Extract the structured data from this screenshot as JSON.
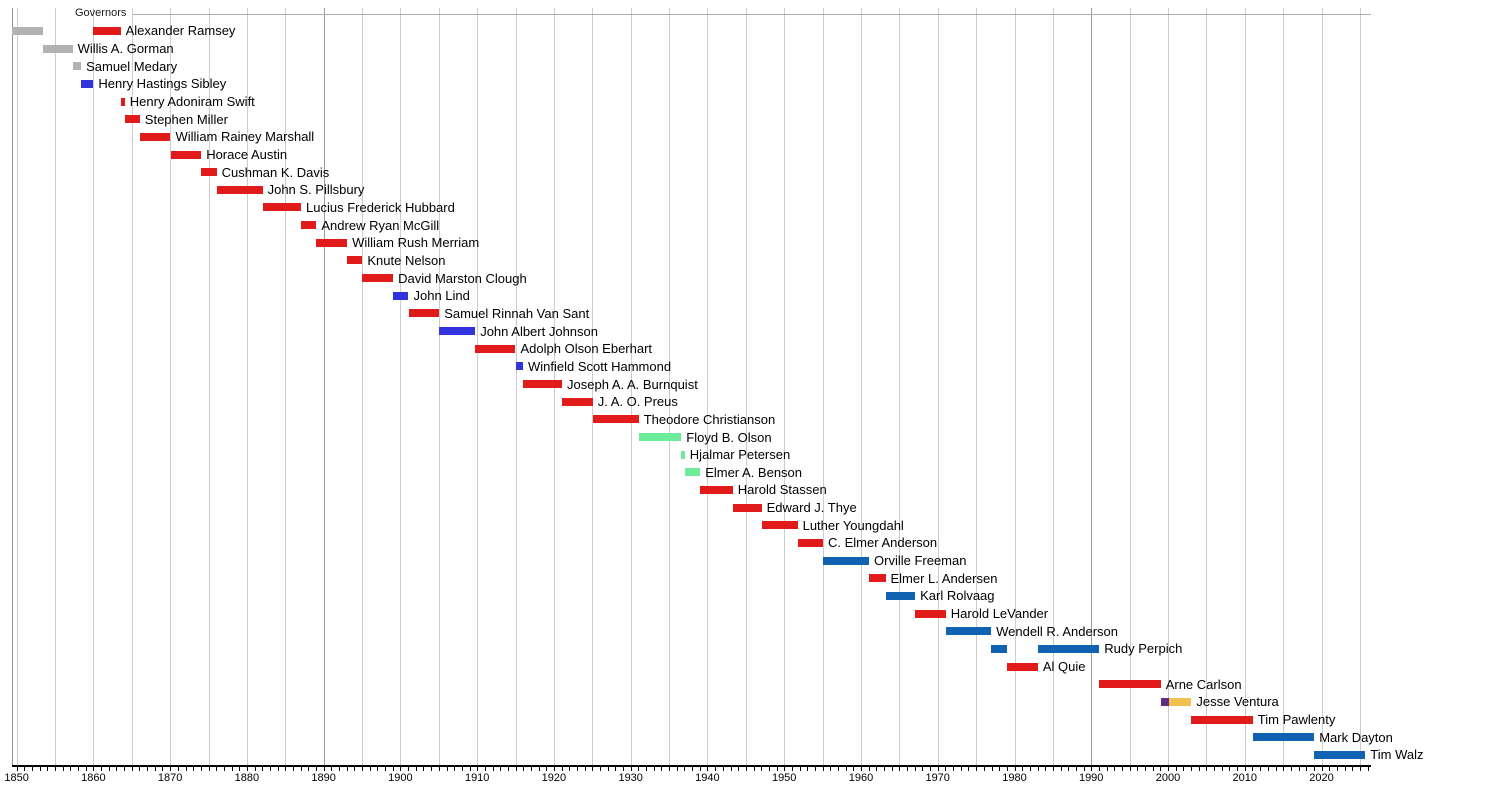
{
  "header": {
    "section_label": "Governors"
  },
  "palette": {
    "gray": "#b2b2b2",
    "red": "#e11a1a",
    "brightblue": "#3333dd",
    "lightgreen": "#6ceb9b",
    "darkblue": "#1163b2",
    "purple": "#5c2d87",
    "gold": "#f1c14f",
    "gridline": "#cdcdcd",
    "gridline_emphasized": "#9c9c9c",
    "axis": "#000000"
  },
  "chart_data": {
    "type": "bar",
    "subtype": "gantt-timeline",
    "title": "Governors",
    "grid": true,
    "legend_position": "none",
    "x_axis": {
      "min": 1849.4,
      "max": 2026.5,
      "tick_labels": [
        "1850",
        "1860",
        "1870",
        "1880",
        "1890",
        "1900",
        "1910",
        "1920",
        "1930",
        "1940",
        "1950",
        "1960",
        "1970",
        "1980",
        "1990",
        "2000",
        "2010",
        "2020"
      ],
      "tick_interval_years": 10,
      "grid_interval_years": 5,
      "minor_tick_interval_years": 1,
      "emphasized_gridline_years": [
        1890,
        1990
      ]
    },
    "rows": [
      {
        "label": "Alexander Ramsey",
        "segments": [
          {
            "color": "gray",
            "start": 1849.45,
            "end": 1853.4
          },
          {
            "color": "red",
            "start": 1860.0,
            "end": 1863.55
          }
        ]
      },
      {
        "label": "Willis A. Gorman",
        "segments": [
          {
            "color": "gray",
            "start": 1853.4,
            "end": 1857.3
          }
        ]
      },
      {
        "label": "Samuel Medary",
        "segments": [
          {
            "color": "gray",
            "start": 1857.3,
            "end": 1858.4
          }
        ]
      },
      {
        "label": "Henry Hastings Sibley",
        "segments": [
          {
            "color": "brightblue",
            "start": 1858.4,
            "end": 1860.0
          }
        ]
      },
      {
        "label": "Henry Adoniram Swift",
        "segments": [
          {
            "color": "red",
            "start": 1863.55,
            "end": 1864.1
          }
        ]
      },
      {
        "label": "Stephen Miller",
        "segments": [
          {
            "color": "red",
            "start": 1864.1,
            "end": 1866.05
          }
        ]
      },
      {
        "label": "William Rainey Marshall",
        "segments": [
          {
            "color": "red",
            "start": 1866.05,
            "end": 1870.05
          }
        ]
      },
      {
        "label": "Horace Austin",
        "segments": [
          {
            "color": "red",
            "start": 1870.05,
            "end": 1874.05
          }
        ]
      },
      {
        "label": "Cushman K. Davis",
        "segments": [
          {
            "color": "red",
            "start": 1874.05,
            "end": 1876.05
          }
        ]
      },
      {
        "label": "John S. Pillsbury",
        "segments": [
          {
            "color": "red",
            "start": 1876.05,
            "end": 1882.05
          }
        ]
      },
      {
        "label": "Lucius Frederick Hubbard",
        "segments": [
          {
            "color": "red",
            "start": 1882.05,
            "end": 1887.05
          }
        ]
      },
      {
        "label": "Andrew Ryan McGill",
        "segments": [
          {
            "color": "red",
            "start": 1887.05,
            "end": 1889.05
          }
        ]
      },
      {
        "label": "William Rush Merriam",
        "segments": [
          {
            "color": "red",
            "start": 1889.05,
            "end": 1893.05
          }
        ]
      },
      {
        "label": "Knute Nelson",
        "segments": [
          {
            "color": "red",
            "start": 1893.05,
            "end": 1895.05
          }
        ]
      },
      {
        "label": "David Marston Clough",
        "segments": [
          {
            "color": "red",
            "start": 1895.05,
            "end": 1899.05
          }
        ]
      },
      {
        "label": "John Lind",
        "segments": [
          {
            "color": "brightblue",
            "start": 1899.05,
            "end": 1901.05
          }
        ]
      },
      {
        "label": "Samuel Rinnah Van Sant",
        "segments": [
          {
            "color": "red",
            "start": 1901.05,
            "end": 1905.05
          }
        ]
      },
      {
        "label": "John Albert Johnson",
        "segments": [
          {
            "color": "brightblue",
            "start": 1905.05,
            "end": 1909.75
          }
        ]
      },
      {
        "label": "Adolph Olson Eberhart",
        "segments": [
          {
            "color": "red",
            "start": 1909.75,
            "end": 1915.0
          }
        ]
      },
      {
        "label": "Winfield Scott Hammond",
        "segments": [
          {
            "color": "brightblue",
            "start": 1915.0,
            "end": 1915.97
          }
        ]
      },
      {
        "label": "Joseph A. A. Burnquist",
        "segments": [
          {
            "color": "red",
            "start": 1915.97,
            "end": 1921.05
          }
        ]
      },
      {
        "label": "J. A. O. Preus",
        "segments": [
          {
            "color": "red",
            "start": 1921.05,
            "end": 1925.05
          }
        ]
      },
      {
        "label": "Theodore Christianson",
        "segments": [
          {
            "color": "red",
            "start": 1925.05,
            "end": 1931.05
          }
        ]
      },
      {
        "label": "Floyd B. Olson",
        "segments": [
          {
            "color": "lightgreen",
            "start": 1931.05,
            "end": 1936.6
          }
        ]
      },
      {
        "label": "Hjalmar Petersen",
        "segments": [
          {
            "color": "lightgreen",
            "start": 1936.6,
            "end": 1937.05
          }
        ]
      },
      {
        "label": "Elmer A. Benson",
        "segments": [
          {
            "color": "lightgreen",
            "start": 1937.05,
            "end": 1939.05
          }
        ]
      },
      {
        "label": "Harold Stassen",
        "segments": [
          {
            "color": "red",
            "start": 1939.05,
            "end": 1943.3
          }
        ]
      },
      {
        "label": "Edward J. Thye",
        "segments": [
          {
            "color": "red",
            "start": 1943.3,
            "end": 1947.05
          }
        ]
      },
      {
        "label": "Luther Youngdahl",
        "segments": [
          {
            "color": "red",
            "start": 1947.05,
            "end": 1951.75
          }
        ]
      },
      {
        "label": "C. Elmer Anderson",
        "segments": [
          {
            "color": "red",
            "start": 1951.75,
            "end": 1955.05
          }
        ]
      },
      {
        "label": "Orville Freeman",
        "segments": [
          {
            "color": "darkblue",
            "start": 1955.05,
            "end": 1961.05
          }
        ]
      },
      {
        "label": "Elmer L. Andersen",
        "segments": [
          {
            "color": "red",
            "start": 1961.05,
            "end": 1963.2
          }
        ]
      },
      {
        "label": "Karl Rolvaag",
        "segments": [
          {
            "color": "darkblue",
            "start": 1963.2,
            "end": 1967.05
          }
        ]
      },
      {
        "label": "Harold LeVander",
        "segments": [
          {
            "color": "red",
            "start": 1967.05,
            "end": 1971.05
          }
        ]
      },
      {
        "label": "Wendell R. Anderson",
        "segments": [
          {
            "color": "darkblue",
            "start": 1971.05,
            "end": 1976.95
          }
        ]
      },
      {
        "label": "Rudy Perpich",
        "segments": [
          {
            "color": "darkblue",
            "start": 1976.95,
            "end": 1979.05
          },
          {
            "color": "darkblue",
            "start": 1983.05,
            "end": 1991.05
          }
        ]
      },
      {
        "label": "Al Quie",
        "segments": [
          {
            "color": "red",
            "start": 1979.05,
            "end": 1983.05
          }
        ]
      },
      {
        "label": "Arne Carlson",
        "segments": [
          {
            "color": "red",
            "start": 1991.05,
            "end": 1999.05
          }
        ]
      },
      {
        "label": "Jesse Ventura",
        "segments": [
          {
            "color": "purple",
            "start": 1999.05,
            "end": 2000.1
          },
          {
            "color": "gold",
            "start": 2000.1,
            "end": 2003.05
          }
        ]
      },
      {
        "label": "Tim Pawlenty",
        "segments": [
          {
            "color": "red",
            "start": 2003.05,
            "end": 2011.05
          }
        ]
      },
      {
        "label": "Mark Dayton",
        "segments": [
          {
            "color": "darkblue",
            "start": 2011.05,
            "end": 2019.05
          }
        ]
      },
      {
        "label": "Tim Walz",
        "segments": [
          {
            "color": "darkblue",
            "start": 2019.05,
            "end": 2025.7
          }
        ]
      }
    ]
  }
}
